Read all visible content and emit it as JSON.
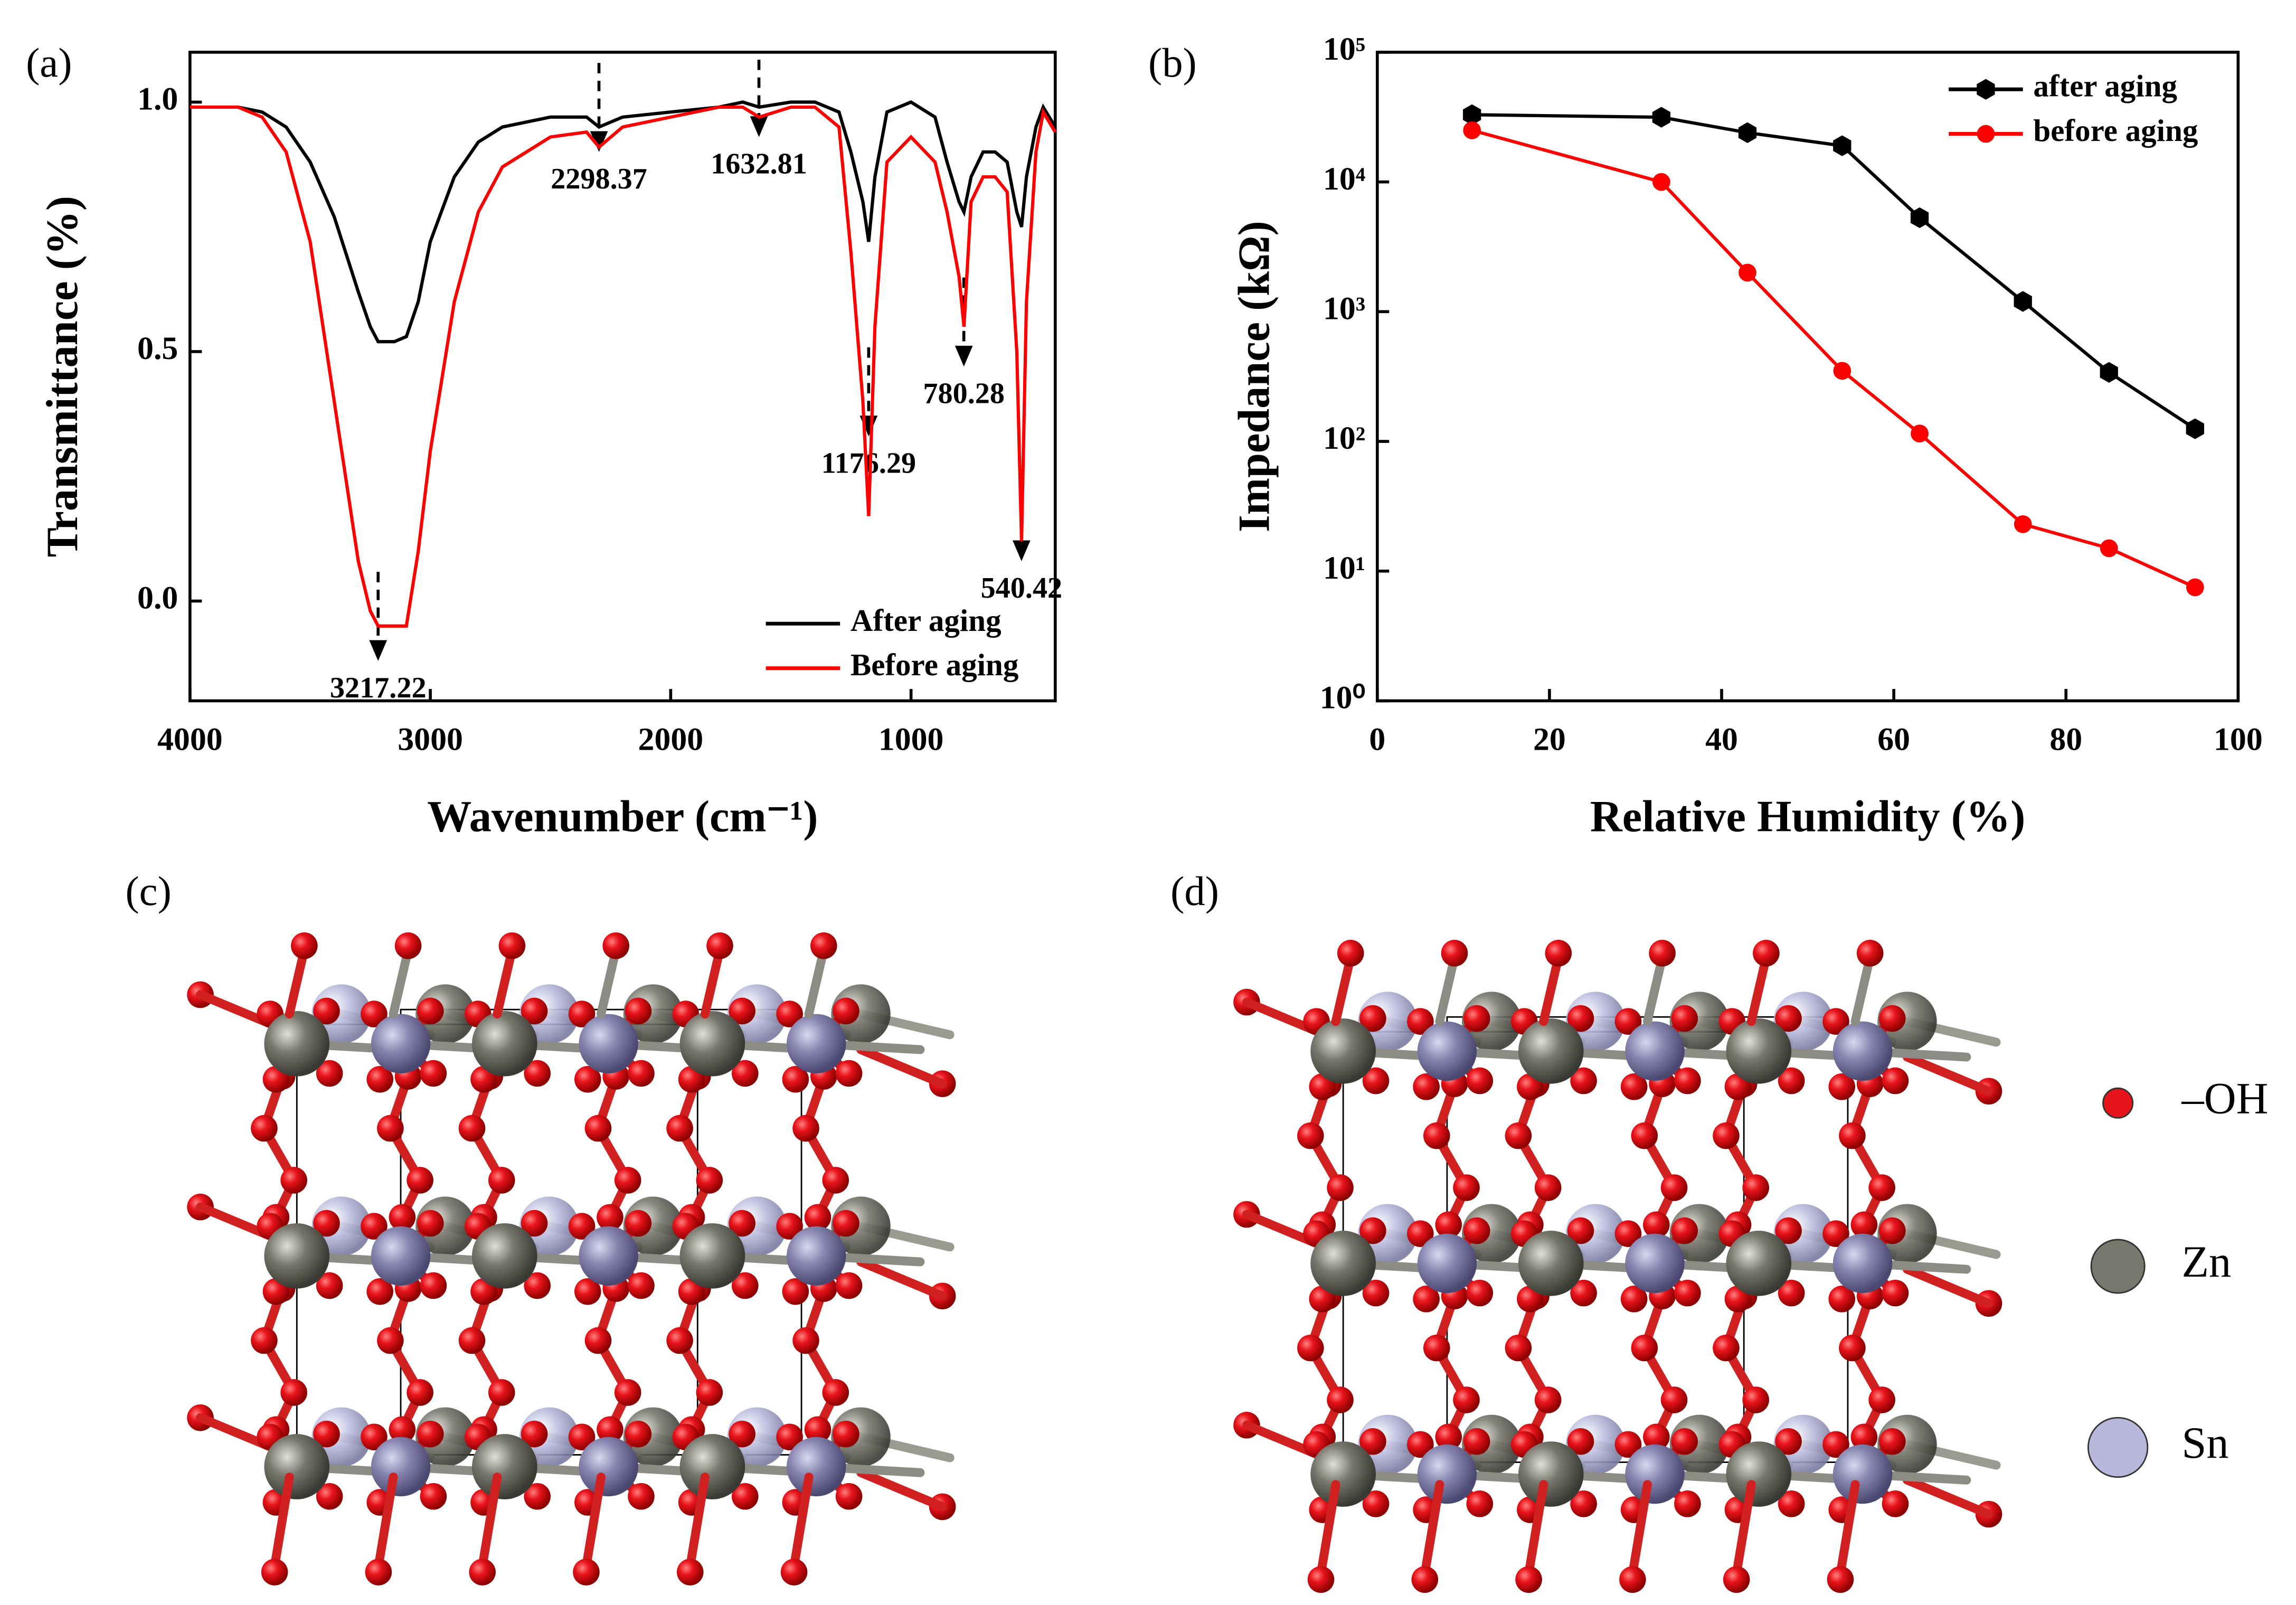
{
  "chart_data": [
    {
      "type": "line",
      "panel": "(a)",
      "x_label": "Wavenumber (cm⁻¹)",
      "y_label": "Transmittance (%)",
      "xlim": [
        4000,
        400
      ],
      "xticks": [
        4000,
        3000,
        2000,
        1000
      ],
      "ylim": [
        -0.2,
        1.1
      ],
      "yticks": [
        {
          "value": 0,
          "label": "0.0"
        },
        {
          "value": 0.5,
          "label": "0.5"
        },
        {
          "value": 1,
          "label": "1.0"
        }
      ],
      "legend": "lower right",
      "x": [
        4000,
        3800,
        3700,
        3600,
        3500,
        3400,
        3300,
        3250,
        3217,
        3150,
        3100,
        3050,
        3000,
        2900,
        2800,
        2700,
        2500,
        2350,
        2298,
        2200,
        2000,
        1800,
        1700,
        1632,
        1500,
        1400,
        1300,
        1250,
        1200,
        1176,
        1150,
        1100,
        1000,
        900,
        850,
        800,
        780,
        750,
        700,
        650,
        600,
        560,
        540,
        520,
        480,
        450,
        400
      ],
      "series": [
        {
          "name": "After aging",
          "color": "#000000",
          "values": [
            0.99,
            0.99,
            0.98,
            0.95,
            0.88,
            0.77,
            0.62,
            0.55,
            0.52,
            0.52,
            0.53,
            0.6,
            0.72,
            0.85,
            0.92,
            0.95,
            0.97,
            0.97,
            0.95,
            0.97,
            0.98,
            0.99,
            1.0,
            0.99,
            1.0,
            1.0,
            0.98,
            0.9,
            0.8,
            0.72,
            0.85,
            0.98,
            1.0,
            0.97,
            0.88,
            0.8,
            0.78,
            0.85,
            0.9,
            0.9,
            0.88,
            0.78,
            0.75,
            0.85,
            0.95,
            0.99,
            0.95
          ]
        },
        {
          "name": "Before aging",
          "color": "#ff0000",
          "values": [
            0.99,
            0.99,
            0.97,
            0.9,
            0.72,
            0.4,
            0.08,
            -0.02,
            -0.05,
            -0.05,
            -0.05,
            0.1,
            0.3,
            0.6,
            0.78,
            0.87,
            0.93,
            0.94,
            0.91,
            0.95,
            0.97,
            0.99,
            0.99,
            0.97,
            0.99,
            0.99,
            0.95,
            0.7,
            0.4,
            0.17,
            0.55,
            0.88,
            0.93,
            0.88,
            0.78,
            0.65,
            0.55,
            0.8,
            0.85,
            0.85,
            0.82,
            0.5,
            0.12,
            0.6,
            0.9,
            0.98,
            0.94
          ]
        }
      ],
      "annotations": [
        {
          "label": "3217.22",
          "x": 3217.22,
          "y": -0.12
        },
        {
          "label": "2298.37",
          "x": 2298.37,
          "y": 0.9
        },
        {
          "label": "1632.81",
          "x": 1632.81,
          "y": 0.93
        },
        {
          "label": "1176.29",
          "x": 1176.29,
          "y": 0.33
        },
        {
          "label": "780.28",
          "x": 780.28,
          "y": 0.47
        },
        {
          "label": "540.42",
          "x": 540.42,
          "y": 0.08
        }
      ]
    },
    {
      "type": "line",
      "panel": "(b)",
      "x_label": "Relative Humidity (%)",
      "y_label": "Impedance (kΩ)",
      "xlim": [
        0,
        100
      ],
      "xticks": [
        0,
        20,
        40,
        60,
        80,
        100
      ],
      "ylim": [
        1,
        100000
      ],
      "log_y": true,
      "yticks": [
        {
          "value": 1,
          "label": "10⁰"
        },
        {
          "value": 10,
          "label": "10¹"
        },
        {
          "value": 100,
          "label": "10²"
        },
        {
          "value": 1000,
          "label": "10³"
        },
        {
          "value": 10000,
          "label": "10⁴"
        },
        {
          "value": 100000,
          "label": "10⁵"
        }
      ],
      "legend": "upper right",
      "x": [
        11,
        33,
        43,
        54,
        63,
        75,
        85,
        95
      ],
      "series": [
        {
          "name": "after aging",
          "color": "#000000",
          "marker": "hexagon",
          "values": [
            33000,
            31500,
            24000,
            19000,
            5300,
            1200,
            340,
            125
          ]
        },
        {
          "name": "before aging",
          "color": "#ff0000",
          "marker": "circle",
          "values": [
            25000,
            10000,
            2000,
            350,
            115,
            23,
            15,
            7.5
          ]
        }
      ]
    }
  ],
  "panels": [
    {
      "label": "(c)"
    },
    {
      "label": "(d)"
    }
  ],
  "structure_legend": [
    {
      "label": "–OH",
      "color": "#e8141b"
    },
    {
      "label": "Zn",
      "color": "#77776e"
    },
    {
      "label": "Sn",
      "color": "#b8b8dc"
    }
  ]
}
